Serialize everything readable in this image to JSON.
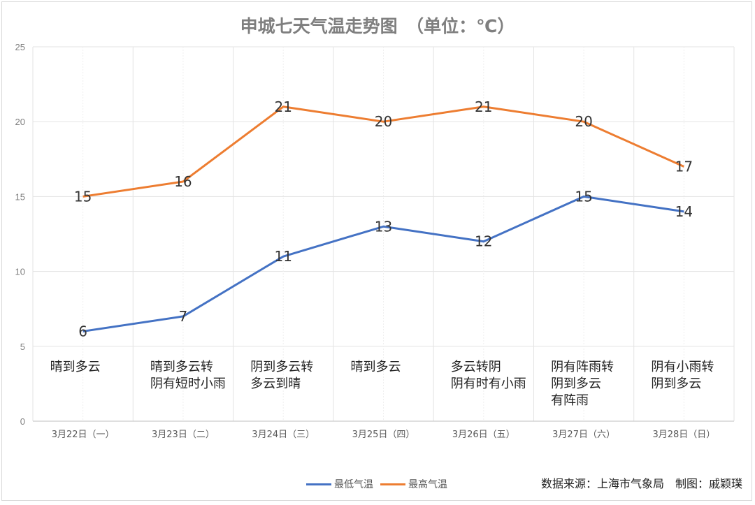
{
  "chart_data": {
    "type": "line",
    "title": "申城七天气温走势图　（单位：℃）",
    "categories": [
      "3月22日（一）",
      "3月23日（二）",
      "3月24日（三）",
      "3月25日（四）",
      "3月26日（五）",
      "3月27日（六）",
      "3月28日（日）"
    ],
    "weather": [
      "晴到多云",
      "晴到多云转\n阴有短时小雨",
      "阴到多云转\n多云到晴",
      "晴到多云",
      "多云转阴\n阴有时有小雨",
      "阴有阵雨转\n阴到多云\n有阵雨",
      "阴有小雨转\n阴到多云"
    ],
    "series": [
      {
        "name": "最低气温",
        "color": "#4472c4",
        "values": [
          6,
          7,
          11,
          13,
          12,
          15,
          14
        ]
      },
      {
        "name": "最高气温",
        "color": "#ed7d31",
        "values": [
          15,
          16,
          21,
          20,
          21,
          20,
          17
        ]
      }
    ],
    "ylim": [
      0,
      25
    ],
    "yticks": [
      0,
      5,
      10,
      15,
      20,
      25
    ],
    "grid": true,
    "legend": "bottom-center",
    "xlabel": "",
    "ylabel": ""
  },
  "credit": "数据来源：上海市气象局　制图：戚颖璞"
}
